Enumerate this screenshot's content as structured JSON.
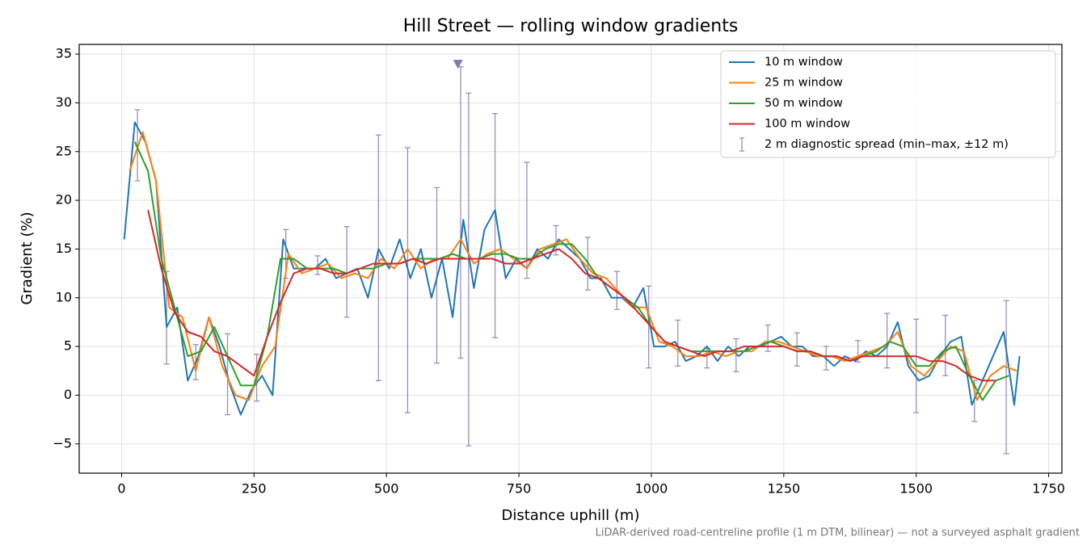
{
  "chart_data": {
    "type": "line",
    "title": "Hill Street — rolling window gradients",
    "xlabel": "Distance uphill (m)",
    "ylabel": "Gradient (%)",
    "footnote": "LiDAR-derived road-centreline profile (1 m DTM, bilinear) — not a surveyed asphalt gradient",
    "xlim": [
      -80,
      1775
    ],
    "ylim": [
      -8,
      36
    ],
    "xticks": [
      0,
      250,
      500,
      750,
      1000,
      1250,
      1500,
      1750
    ],
    "yticks": [
      {
        "value": -5,
        "label": "−5"
      },
      0,
      5,
      10,
      15,
      20,
      25,
      30,
      35
    ],
    "grid": true,
    "legend": "upper right",
    "series": [
      {
        "name": "10 m window",
        "color": "#1f77b4",
        "x": [
          5,
          25,
          45,
          65,
          85,
          105,
          125,
          145,
          165,
          185,
          205,
          225,
          245,
          265,
          285,
          305,
          325,
          345,
          365,
          385,
          405,
          425,
          445,
          465,
          485,
          505,
          525,
          545,
          565,
          585,
          605,
          625,
          645,
          665,
          685,
          705,
          725,
          745,
          765,
          785,
          805,
          825,
          845,
          865,
          885,
          905,
          925,
          945,
          965,
          985,
          1005,
          1025,
          1045,
          1065,
          1085,
          1105,
          1125,
          1145,
          1165,
          1185,
          1205,
          1225,
          1245,
          1265,
          1285,
          1305,
          1325,
          1345,
          1365,
          1385,
          1405,
          1425,
          1445,
          1465,
          1485,
          1505,
          1525,
          1545,
          1565,
          1585,
          1605,
          1625,
          1645,
          1665,
          1685,
          1695
        ],
        "values": [
          16,
          28,
          26,
          22,
          7,
          9,
          1.5,
          4,
          8,
          5,
          1,
          -2,
          0.5,
          2,
          0,
          16,
          13,
          13,
          13,
          14,
          12,
          12.5,
          13,
          10,
          15,
          13,
          16,
          12,
          15,
          10,
          14,
          8,
          18,
          11,
          17,
          19,
          12,
          14,
          13,
          15,
          14,
          16,
          15,
          14,
          12,
          12,
          10,
          10,
          9,
          11,
          5,
          5,
          5.5,
          3.5,
          4,
          5,
          3.5,
          5,
          4,
          5,
          5,
          5.5,
          6,
          5,
          5,
          4,
          4,
          3,
          4,
          3.5,
          4.5,
          4,
          5,
          7.5,
          3,
          1.5,
          2,
          4,
          5.5,
          6,
          -1,
          1.5,
          4,
          6.5,
          -1,
          4
        ]
      },
      {
        "name": "25 m window",
        "color": "#ff7f0e",
        "x": [
          15,
          40,
          65,
          90,
          115,
          140,
          165,
          190,
          215,
          240,
          265,
          290,
          315,
          340,
          365,
          390,
          415,
          440,
          465,
          490,
          515,
          540,
          565,
          590,
          615,
          640,
          665,
          690,
          715,
          740,
          765,
          790,
          815,
          840,
          865,
          890,
          915,
          940,
          965,
          990,
          1015,
          1040,
          1065,
          1090,
          1115,
          1140,
          1165,
          1190,
          1215,
          1240,
          1265,
          1290,
          1315,
          1340,
          1365,
          1390,
          1415,
          1440,
          1465,
          1490,
          1515,
          1540,
          1565,
          1590,
          1615,
          1640,
          1665,
          1690
        ],
        "values": [
          23,
          27,
          22,
          9,
          8,
          2.5,
          8,
          3,
          0,
          -0.5,
          3,
          5,
          14.5,
          12.5,
          13,
          13.5,
          12,
          12.5,
          12,
          14,
          13,
          15,
          13,
          14,
          14,
          16,
          13.5,
          14.5,
          15,
          14,
          13,
          15,
          15.5,
          16,
          14,
          12.5,
          12,
          10.5,
          9,
          9,
          5.5,
          5,
          4,
          4,
          4.5,
          4,
          4.5,
          4.5,
          5.5,
          5.5,
          5,
          4.5,
          4,
          4,
          3.5,
          4,
          4.5,
          5,
          6.5,
          3,
          2,
          3.5,
          5,
          4.5,
          -0.5,
          2,
          3,
          2.5
        ]
      },
      {
        "name": "50 m window",
        "color": "#2ca02c",
        "x": [
          25,
          50,
          75,
          100,
          125,
          150,
          175,
          200,
          225,
          250,
          275,
          300,
          325,
          350,
          375,
          400,
          425,
          450,
          475,
          500,
          525,
          550,
          575,
          600,
          625,
          650,
          675,
          700,
          725,
          750,
          775,
          800,
          825,
          850,
          875,
          900,
          925,
          950,
          975,
          1000,
          1025,
          1050,
          1075,
          1100,
          1125,
          1150,
          1175,
          1200,
          1225,
          1250,
          1275,
          1300,
          1325,
          1350,
          1375,
          1400,
          1425,
          1450,
          1475,
          1500,
          1525,
          1550,
          1575,
          1600,
          1625,
          1650,
          1675
        ],
        "values": [
          26,
          23,
          14,
          9,
          4,
          4.5,
          7,
          4,
          1,
          1,
          6,
          14,
          14,
          13,
          13,
          13,
          12.5,
          13,
          13,
          13.5,
          13.5,
          14,
          14,
          14,
          14.5,
          14,
          14,
          14.5,
          14.5,
          14,
          14,
          15,
          15.5,
          15.5,
          14,
          12,
          11,
          10,
          9,
          7,
          5.5,
          5,
          4.5,
          4.5,
          4.5,
          4.5,
          4.5,
          5,
          5.5,
          5,
          4.5,
          4.5,
          4,
          4,
          3.5,
          4,
          4.5,
          5.5,
          5,
          3,
          3,
          4.5,
          5,
          2,
          -0.5,
          1.5,
          2
        ]
      },
      {
        "name": "100 m window",
        "color": "#d62728",
        "x": [
          50,
          75,
          100,
          125,
          150,
          175,
          200,
          225,
          250,
          275,
          300,
          325,
          350,
          375,
          400,
          425,
          450,
          475,
          500,
          525,
          550,
          575,
          600,
          625,
          650,
          675,
          700,
          725,
          750,
          775,
          800,
          825,
          850,
          875,
          900,
          925,
          950,
          975,
          1000,
          1025,
          1050,
          1075,
          1100,
          1125,
          1150,
          1175,
          1200,
          1225,
          1250,
          1275,
          1300,
          1325,
          1350,
          1375,
          1400,
          1425,
          1450,
          1475,
          1500,
          1525,
          1550,
          1575,
          1600,
          1625,
          1650
        ],
        "values": [
          19,
          13,
          8.5,
          6.5,
          6,
          4.5,
          4,
          3,
          2,
          6,
          9.5,
          12.5,
          13,
          13,
          12.5,
          12.5,
          13,
          13.5,
          13.5,
          13.5,
          14,
          13.5,
          14,
          14,
          14,
          14,
          14,
          13.5,
          13.5,
          14,
          14.5,
          15,
          14,
          12.5,
          12,
          11,
          10,
          8.5,
          7,
          5.5,
          5,
          4.5,
          4,
          4.5,
          4.5,
          5,
          5,
          5,
          5,
          4.5,
          4.5,
          4,
          4,
          3.5,
          4,
          4,
          4,
          4,
          4,
          3.5,
          3.5,
          3,
          2,
          1.5,
          1.5
        ]
      }
    ],
    "error_bars": {
      "name": "2 m diagnostic spread (min–max, ±12 m)",
      "color": "#9a8fbf",
      "x": [
        30,
        85,
        140,
        200,
        255,
        310,
        370,
        425,
        485,
        540,
        595,
        640,
        655,
        705,
        765,
        820,
        880,
        935,
        995,
        1050,
        1105,
        1160,
        1220,
        1275,
        1330,
        1390,
        1445,
        1500,
        1555,
        1610,
        1670
      ],
      "low": [
        22,
        3.2,
        1.6,
        -2,
        -0.6,
        12,
        12.4,
        8,
        1.5,
        -1.8,
        3.3,
        3.8,
        -5.2,
        5.9,
        12,
        14.4,
        10.8,
        8.8,
        2.8,
        3,
        2.8,
        2.4,
        4.5,
        3,
        2.6,
        3.4,
        2.8,
        -1.8,
        2,
        -2.7,
        -6
      ],
      "high": [
        29.3,
        12.7,
        5.2,
        6.3,
        4.2,
        17,
        14.3,
        17.3,
        26.7,
        25.4,
        21.3,
        33.7,
        31,
        28.9,
        23.9,
        17.4,
        16.2,
        12.7,
        11.2,
        7.7,
        4.8,
        5.8,
        7.2,
        6.4,
        5,
        5.6,
        8.4,
        7.8,
        8.2,
        1.5,
        9.7
      ]
    },
    "marker": {
      "x": 635,
      "y": 34,
      "color": "#8677ad"
    }
  }
}
